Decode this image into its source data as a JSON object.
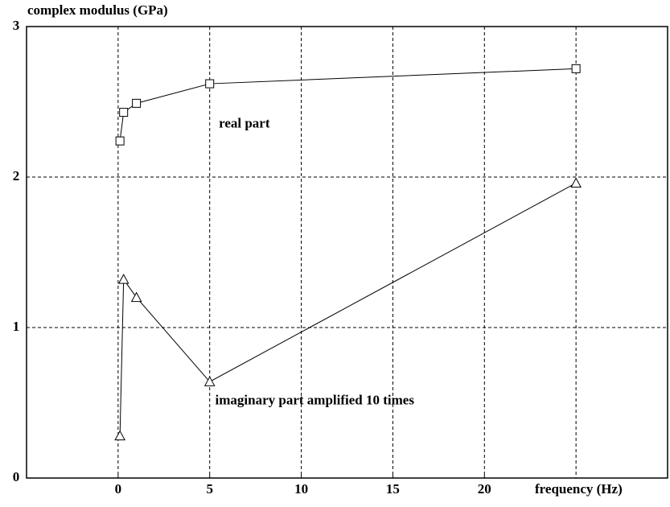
{
  "chart_data": {
    "type": "line",
    "ylabel": "complex modulus (GPa)",
    "xlabel": "frequency (Hz)",
    "xlim": [
      -5,
      30
    ],
    "ylim": [
      0,
      3
    ],
    "xticks": [
      0,
      5,
      10,
      15,
      20
    ],
    "xgrid": [
      0,
      5,
      10,
      15,
      20,
      25
    ],
    "yticks": [
      0,
      1,
      2,
      3
    ],
    "ygrid": [
      1,
      2
    ],
    "grid": true,
    "series": [
      {
        "marker": "square",
        "color": "#000000",
        "x": [
          0.1,
          0.3,
          1,
          5,
          25
        ],
        "values": [
          2.24,
          2.43,
          2.49,
          2.62,
          2.72
        ]
      },
      {
        "marker": "triangle",
        "color": "#000000",
        "x": [
          0.1,
          0.3,
          1,
          5,
          25
        ],
        "values": [
          0.28,
          1.32,
          1.2,
          0.64,
          1.96
        ]
      }
    ],
    "annotations": [
      {
        "text": "real part",
        "x": 5.5,
        "y": 2.35
      },
      {
        "text": "imaginary part amplified 10 times",
        "x": 5.3,
        "y": 0.51
      }
    ]
  }
}
